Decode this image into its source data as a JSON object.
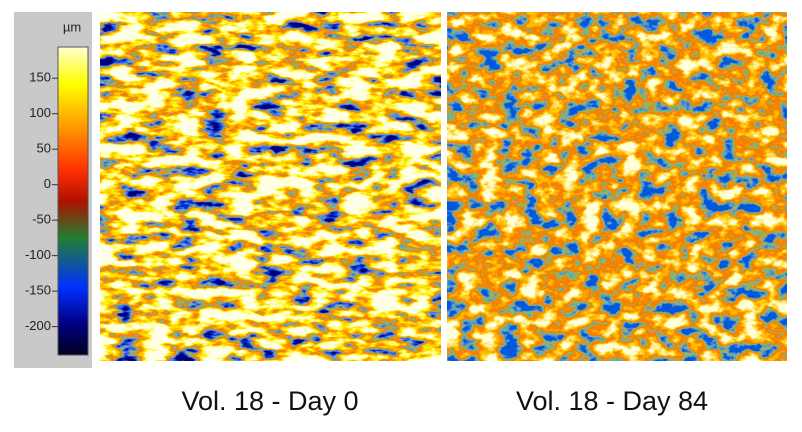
{
  "colorbar": {
    "unit": "µm",
    "lim": [
      -240,
      194
    ],
    "ticks": [
      150,
      100,
      50,
      0,
      -50,
      -100,
      -150,
      -200
    ]
  },
  "panels": [
    {
      "caption": "Vol. 18 - Day 0"
    },
    {
      "caption": "Vol. 18 - Day 84"
    }
  ]
}
